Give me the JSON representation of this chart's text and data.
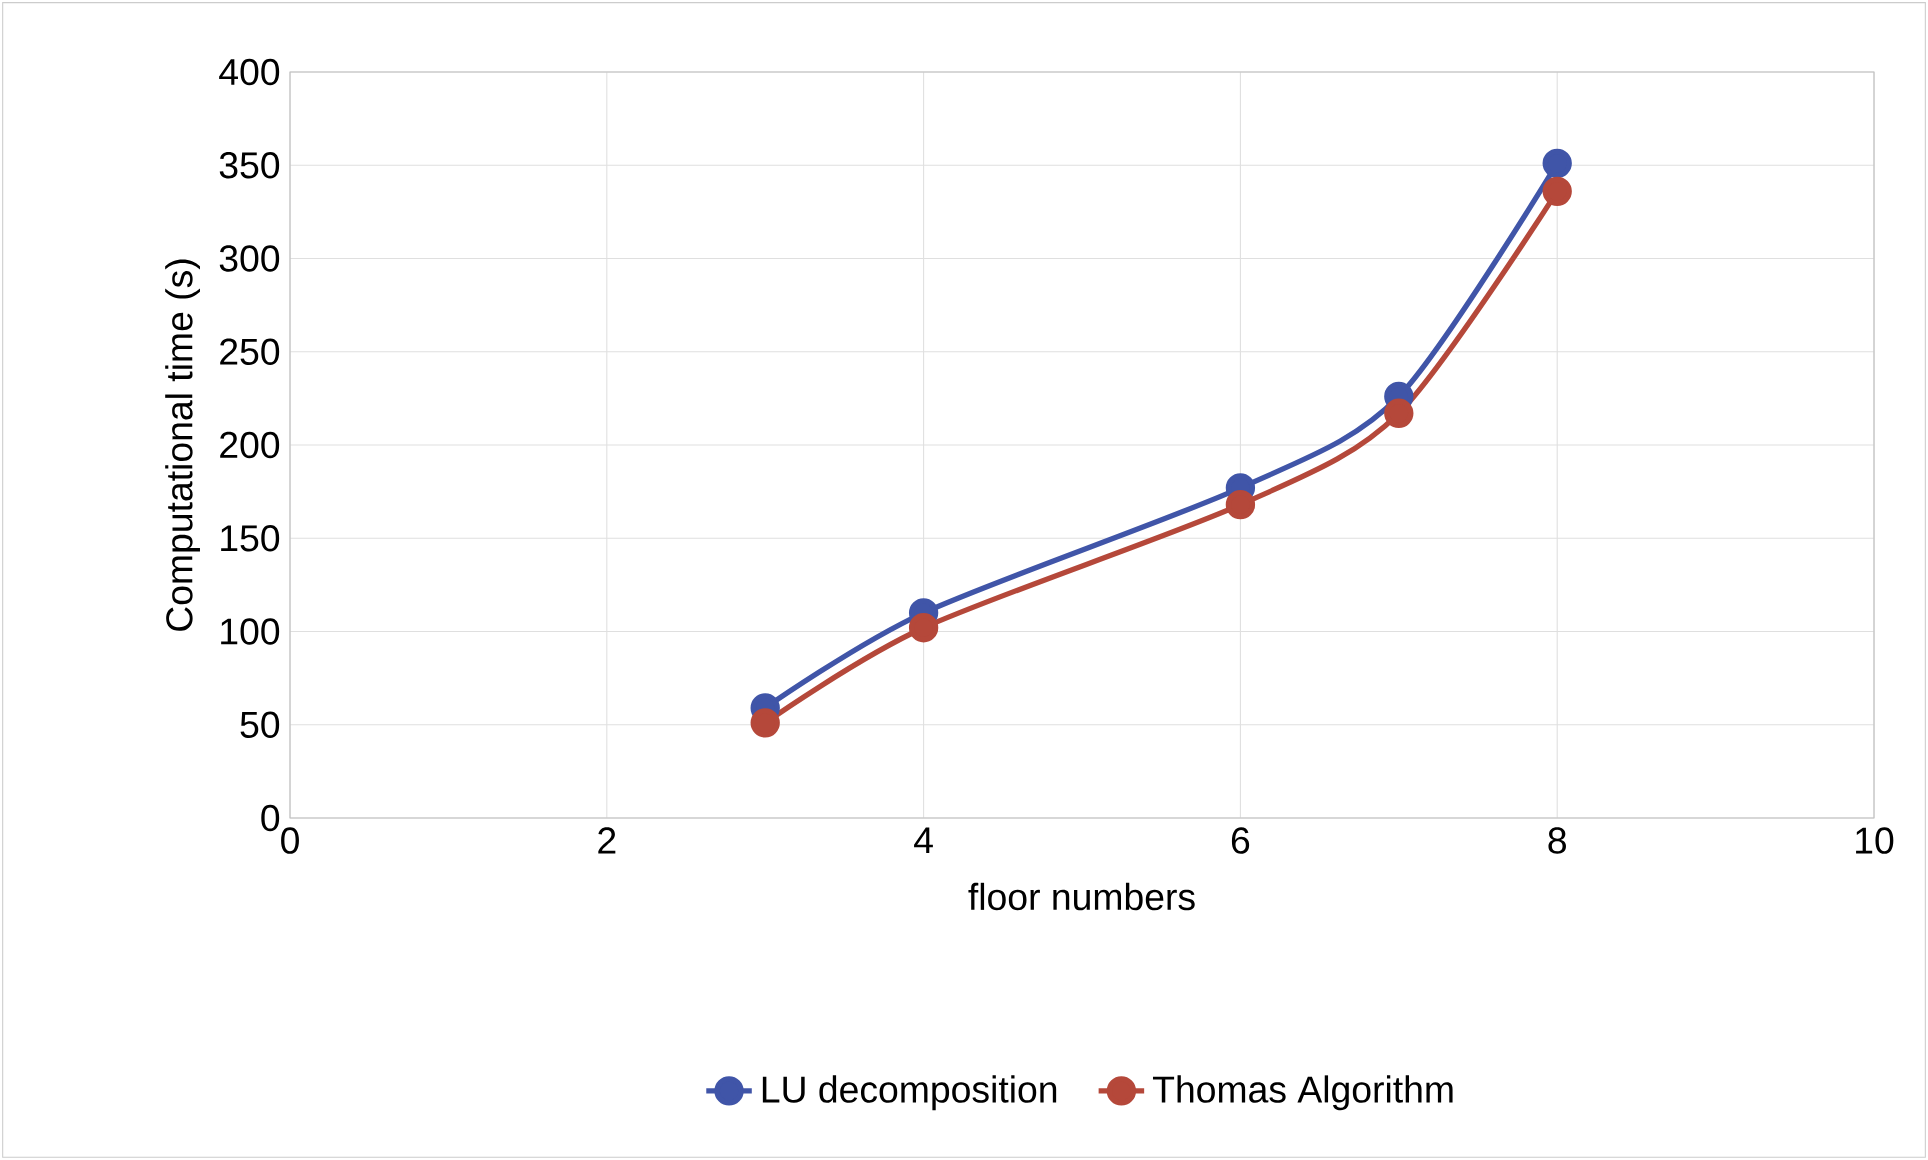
{
  "chart_data": {
    "type": "line",
    "xlabel": "floor numbers",
    "ylabel": "Computational time (s)",
    "xlim": [
      0,
      10
    ],
    "xticks": [
      0,
      2,
      4,
      6,
      8,
      10
    ],
    "ylim": [
      0,
      400
    ],
    "yticks": [
      0,
      50,
      100,
      150,
      200,
      250,
      300,
      350,
      400
    ],
    "grid": true,
    "legend": "bottom",
    "marker": "circle",
    "line_style": "solid",
    "series": [
      {
        "name": "LU decomposition",
        "color": "#4055a8",
        "x": [
          3,
          4,
          6,
          7,
          8
        ],
        "values": [
          59,
          110,
          177,
          226,
          351
        ]
      },
      {
        "name": "Thomas Algorithm",
        "color": "#b5483a",
        "x": [
          3,
          4,
          6,
          7,
          8
        ],
        "values": [
          51,
          102,
          168,
          217,
          336
        ]
      }
    ]
  }
}
